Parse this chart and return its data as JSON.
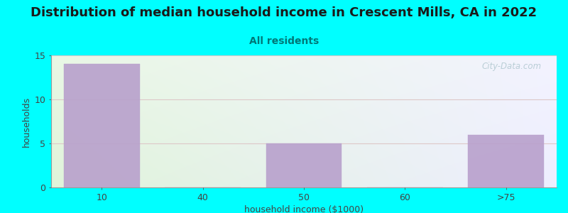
{
  "title": "Distribution of median household income in Crescent Mills, CA in 2022",
  "subtitle": "All residents",
  "xlabel": "household income ($1000)",
  "ylabel": "households",
  "background_color": "#00FFFF",
  "bar_color": "#b8a0cc",
  "categories": [
    "10",
    "40",
    "50",
    "60",
    ">75"
  ],
  "values": [
    14,
    0,
    5,
    0,
    6
  ],
  "ylim": [
    0,
    15
  ],
  "yticks": [
    0,
    5,
    10,
    15
  ],
  "title_fontsize": 13,
  "subtitle_fontsize": 10,
  "axis_label_fontsize": 9,
  "tick_fontsize": 9,
  "watermark_text": "City-Data.com",
  "plot_bg_top_left_color": "#e8f5e0",
  "plot_bg_top_right_color": "#eeeeff",
  "plot_bg_bottom_left_color": "#d0edcc",
  "plot_bg_bottom_right_color": "#e8e8ff",
  "grid_color": "#ddc8c8",
  "title_color": "#1a1a1a",
  "subtitle_color": "#007777",
  "axis_label_color": "#444444",
  "tick_color": "#444444",
  "watermark_color": "#b0c8d0",
  "spine_color": "#999999"
}
